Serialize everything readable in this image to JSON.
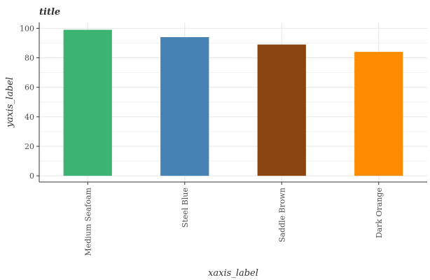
{
  "chart_data": {
    "type": "bar",
    "title": "title",
    "xlabel": "xaxis_label",
    "ylabel": "yaxis_label",
    "categories": [
      "Medium Seafoam",
      "Steel Blue",
      "Saddle Brown",
      "Dark Orange"
    ],
    "values": [
      99,
      94,
      89,
      84
    ],
    "colors": [
      "#3cb371",
      "#4682b4",
      "#8b4513",
      "#ff8c00"
    ],
    "ylim": [
      -4.2,
      104
    ],
    "yticks": [
      0,
      20,
      40,
      60,
      80,
      100
    ],
    "grid": true,
    "legend": "none"
  }
}
